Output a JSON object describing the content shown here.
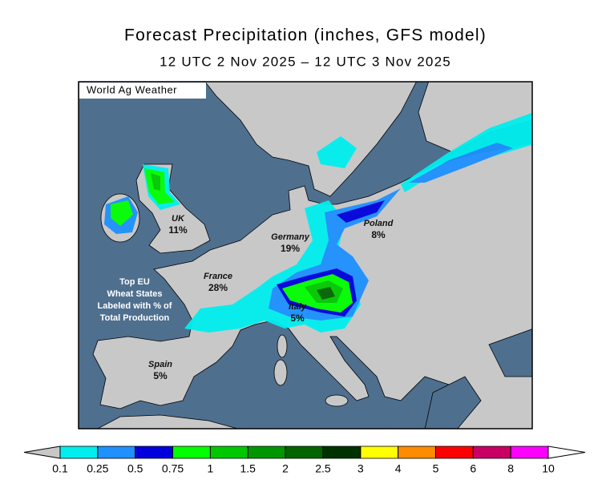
{
  "title": "Forecast Precipitation (inches, GFS model)",
  "subtitle": "12 UTC 2 Nov 2025 – 12 UTC 3 Nov 2025",
  "credit": "World Ag Weather",
  "note": [
    "Top EU",
    "Wheat States",
    "Labeled with % of",
    "Total Production"
  ],
  "countries": [
    {
      "name": "UK",
      "share": "11%"
    },
    {
      "name": "Germany",
      "share": "19%"
    },
    {
      "name": "Poland",
      "share": "8%"
    },
    {
      "name": "France",
      "share": "28%"
    },
    {
      "name": "Italy",
      "share": "5%"
    },
    {
      "name": "Spain",
      "share": "5%"
    }
  ],
  "colorbar": {
    "bounds": [
      0.1,
      0.25,
      0.5,
      0.75,
      1,
      1.5,
      2,
      2.5,
      3,
      4,
      5,
      6,
      8,
      10
    ],
    "colors": [
      "#00eeee",
      "#1e90ff",
      "#0000dd",
      "#00ff00",
      "#00c800",
      "#009600",
      "#006400",
      "#003200",
      "#ffff00",
      "#ff8c00",
      "#ff0000",
      "#c80064",
      "#ff00ff",
      "#9a50c8"
    ],
    "under_color": "#c8c8c8",
    "over_color": "#ffffff"
  }
}
